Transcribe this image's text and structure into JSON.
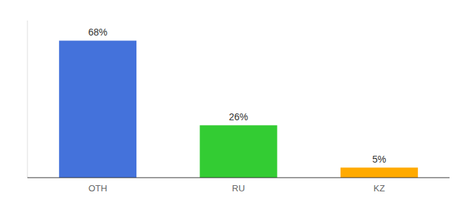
{
  "chart_data": {
    "type": "bar",
    "categories": [
      "OTH",
      "RU",
      "KZ"
    ],
    "values": [
      68,
      26,
      5
    ],
    "value_labels": [
      "68%",
      "26%",
      "5%"
    ],
    "colors": [
      "#4472db",
      "#33cc33",
      "#ffaa00"
    ],
    "ylim": [
      0,
      78
    ],
    "data_labels": true,
    "tick_labels": "x"
  }
}
